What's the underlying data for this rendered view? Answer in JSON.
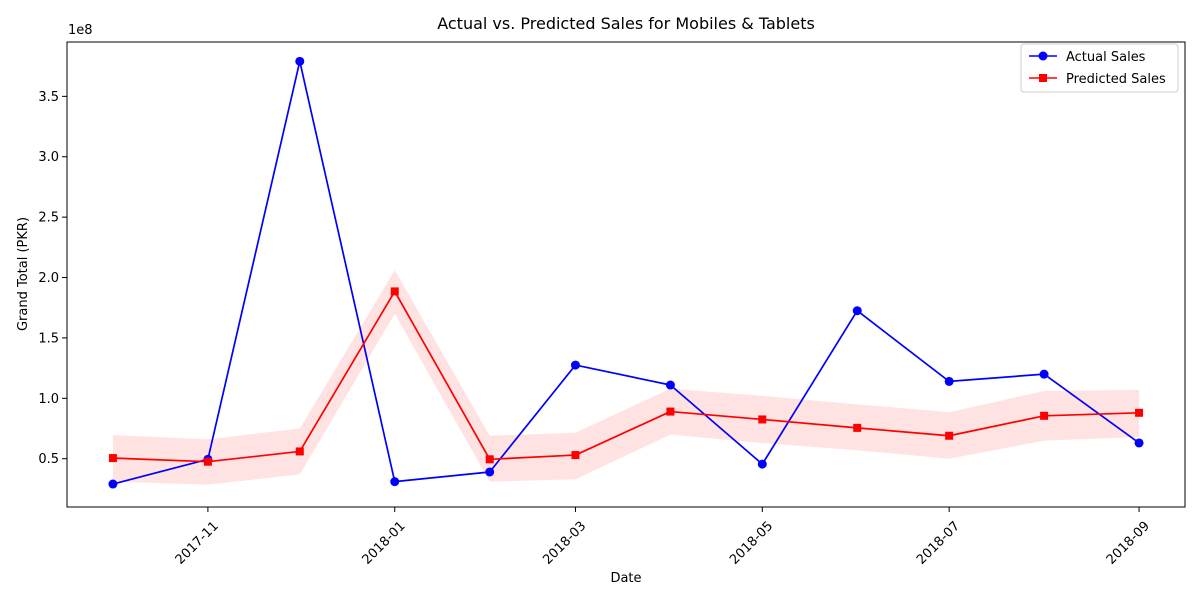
{
  "chart_data": {
    "type": "line",
    "title": "Actual vs. Predicted Sales for Mobiles & Tablets",
    "xlabel": "Date",
    "ylabel": "Grand Total (PKR)",
    "y_offset_text": "1e8",
    "x": [
      "2017-10-01",
      "2017-11-01",
      "2017-12-01",
      "2018-01-01",
      "2018-02-01",
      "2018-03-01",
      "2018-04-01",
      "2018-05-01",
      "2018-06-01",
      "2018-07-01",
      "2018-08-01",
      "2018-09-01"
    ],
    "xlim": [
      "2017-09-16",
      "2018-09-16"
    ],
    "ylim": [
      10000000,
      395000000
    ],
    "x_ticks": [
      "2017-11-01",
      "2018-01-01",
      "2018-03-01",
      "2018-05-01",
      "2018-07-01",
      "2018-09-01"
    ],
    "x_tick_labels": [
      "2017-11",
      "2018-01",
      "2018-03",
      "2018-05",
      "2018-07",
      "2018-09"
    ],
    "x_tick_rotation_deg": 45,
    "y_ticks": [
      50000000,
      100000000,
      150000000,
      200000000,
      250000000,
      300000000,
      350000000
    ],
    "y_tick_labels": [
      "0.5",
      "1.0",
      "1.5",
      "2.0",
      "2.5",
      "3.0",
      "3.5"
    ],
    "series": [
      {
        "name": "Actual Sales",
        "color": "#0000ff",
        "marker": "circle",
        "values": [
          29000000,
          49500000,
          379000000,
          31000000,
          39000000,
          127500000,
          111000000,
          45500000,
          172500000,
          114000000,
          120000000,
          63000000
        ]
      },
      {
        "name": "Predicted Sales",
        "color": "#ff0000",
        "marker": "square",
        "values": [
          50500000,
          47500000,
          56000000,
          188500000,
          49500000,
          53000000,
          89000000,
          82500000,
          75500000,
          69000000,
          85500000,
          88000000
        ],
        "band_upper": [
          69500000,
          66000000,
          75000000,
          206000000,
          69000000,
          71500000,
          108000000,
          102000000,
          95000000,
          88500000,
          106000000,
          107000000
        ],
        "band_lower": [
          31000000,
          28500000,
          37000000,
          170000000,
          31000000,
          33000000,
          70000000,
          63000000,
          57000000,
          50000000,
          65000000,
          68000000
        ],
        "band_color": "#ffdddd"
      }
    ],
    "legend_position": "top-right",
    "grid": false
  }
}
